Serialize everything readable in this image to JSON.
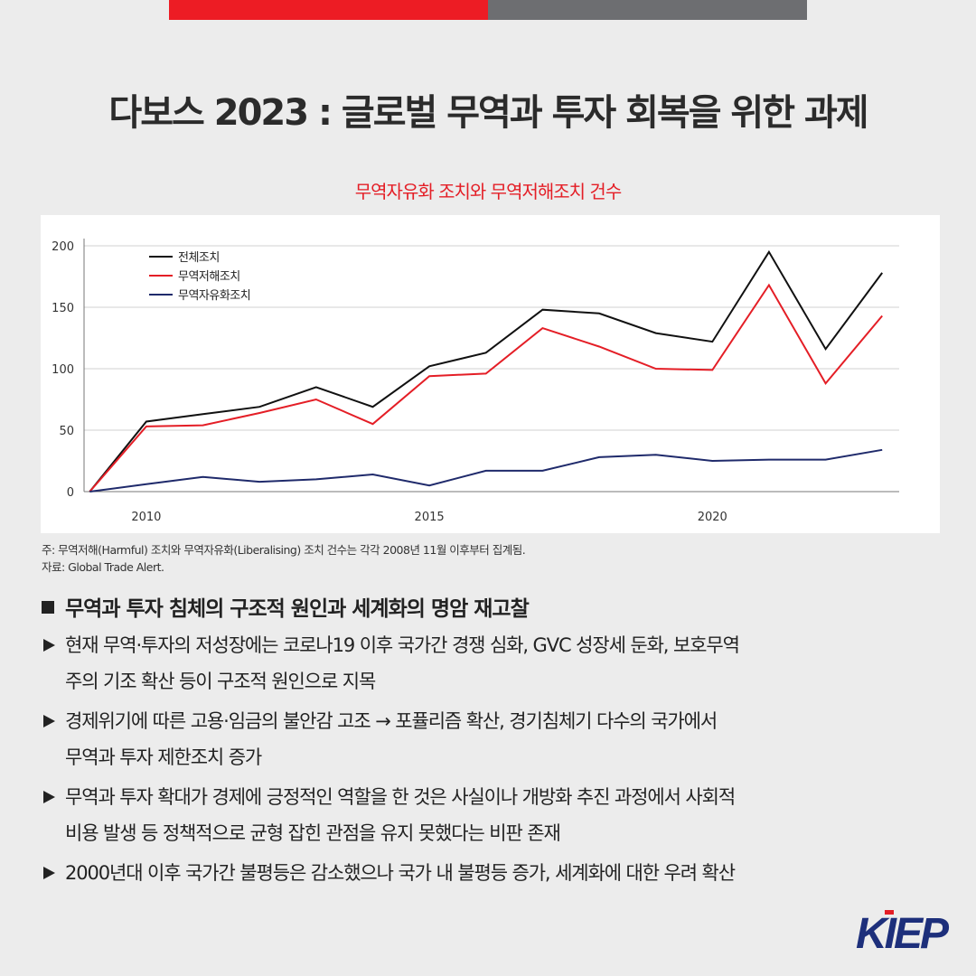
{
  "header": {
    "title": "다보스 2023 : 글로벌 무역과 투자 회복을 위한 과제",
    "subtitle": "무역자유화 조치와 무역저해조치 건수"
  },
  "colors": {
    "accent_red": "#ed1c24",
    "accent_gray": "#6d6e71",
    "series_total": "#111111",
    "series_harmful": "#e41e26",
    "series_liberal": "#1f2a6b",
    "logo_blue": "#1d2f7b",
    "logo_red": "#e41e26"
  },
  "chart_data": {
    "type": "line",
    "title": "무역자유화 조치와 무역저해조치 건수",
    "xlabel": "",
    "ylabel": "",
    "ylim": [
      0,
      200
    ],
    "xlim": [
      2008.9,
      2023.3
    ],
    "yticks": [
      "0",
      "50",
      "100",
      "150",
      "200"
    ],
    "xticks": [
      "2010",
      "2015",
      "2020"
    ],
    "xtick_values": [
      2010,
      2015,
      2020
    ],
    "ytick_values": [
      0,
      50,
      100,
      150,
      200
    ],
    "grid": true,
    "legend_position": "top-left",
    "x": [
      2009,
      2010,
      2011,
      2012,
      2013,
      2014,
      2015,
      2016,
      2017,
      2018,
      2019,
      2020,
      2021,
      2022,
      2023
    ],
    "series": [
      {
        "name": "전체조치",
        "values": [
          0,
          57,
          63,
          69,
          85,
          69,
          102,
          113,
          148,
          145,
          129,
          122,
          195,
          116,
          178
        ]
      },
      {
        "name": "무역저해조치",
        "values": [
          0,
          53,
          54,
          64,
          75,
          55,
          94,
          96,
          133,
          118,
          100,
          99,
          168,
          88,
          143
        ]
      },
      {
        "name": "무역자유화조치",
        "values": [
          0,
          6,
          12,
          8,
          10,
          14,
          5,
          17,
          17,
          28,
          30,
          25,
          26,
          26,
          34
        ]
      }
    ]
  },
  "notes": {
    "note": "주: 무역저해(Harmful) 조치와 무역자유화(Liberalising) 조치 건수는 각각 2008년 11월 이후부터 집계됨.",
    "source": "자료: Global Trade Alert."
  },
  "section": {
    "heading": "무역과 투자 침체의 구조적 원인과 세계화의 명암 재고찰",
    "bullets": [
      {
        "line1": "현재 무역·투자의 저성장에는 코로나19 이후 국가간 경쟁 심화, GVC 성장세 둔화, 보호무역",
        "line2": "주의 기조 확산 등이 구조적 원인으로 지목"
      },
      {
        "line1": "경제위기에 따른 고용·임금의 불안감 고조 → 포퓰리즘 확산, 경기침체기 다수의 국가에서",
        "line2": "무역과 투자 제한조치 증가"
      },
      {
        "line1": "무역과 투자 확대가 경제에 긍정적인 역할을 한 것은 사실이나 개방화 추진 과정에서 사회적",
        "line2": "비용 발생 등 정책적으로 균형 잡힌 관점을 유지 못했다는 비판 존재"
      },
      {
        "line1": "2000년대 이후 국가간 불평등은 감소했으나 국가 내 불평등 증가, 세계화에 대한 우려 확산",
        "line2": ""
      }
    ]
  },
  "logo": {
    "text": "KIEP"
  }
}
